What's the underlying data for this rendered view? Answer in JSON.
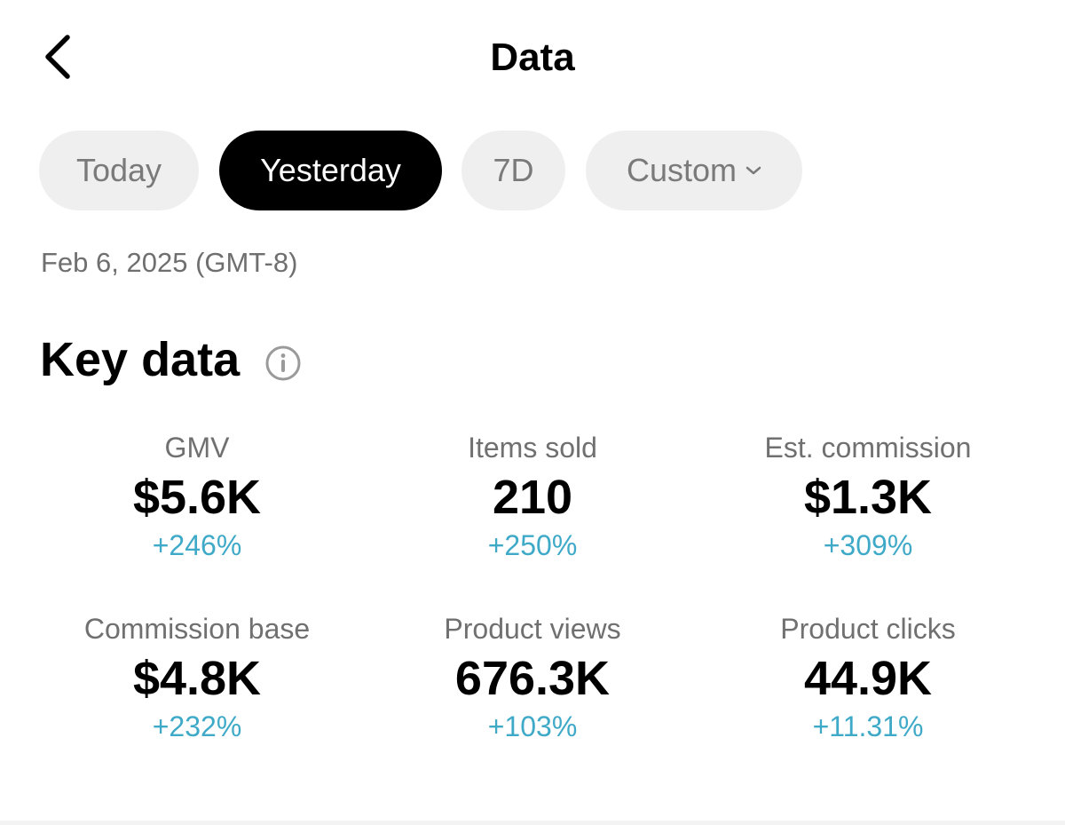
{
  "header": {
    "title": "Data",
    "back_icon": "chevron-left-icon"
  },
  "date_filters": [
    {
      "label": "Today",
      "active": false
    },
    {
      "label": "Yesterday",
      "active": true
    },
    {
      "label": "7D",
      "active": false
    },
    {
      "label": "Custom",
      "active": false,
      "icon": "chevron-down-icon"
    }
  ],
  "date_range": "Feb 6, 2025 (GMT-8)",
  "key_data": {
    "title": "Key data",
    "info_icon": "info-icon",
    "metrics": [
      {
        "label": "GMV",
        "value": "$5.6K",
        "change": "+246%"
      },
      {
        "label": "Items sold",
        "value": "210",
        "change": "+250%"
      },
      {
        "label": "Est. commission",
        "value": "$1.3K",
        "change": "+309%"
      },
      {
        "label": "Commission base",
        "value": "$4.8K",
        "change": "+232%"
      },
      {
        "label": "Product views",
        "value": "676.3K",
        "change": "+103%"
      },
      {
        "label": "Product clicks",
        "value": "44.9K",
        "change": "+11.31%"
      }
    ]
  },
  "colors": {
    "accent_change": "#3fa9c8",
    "active_chip_bg": "#000000",
    "inactive_chip_bg": "#efefef"
  }
}
